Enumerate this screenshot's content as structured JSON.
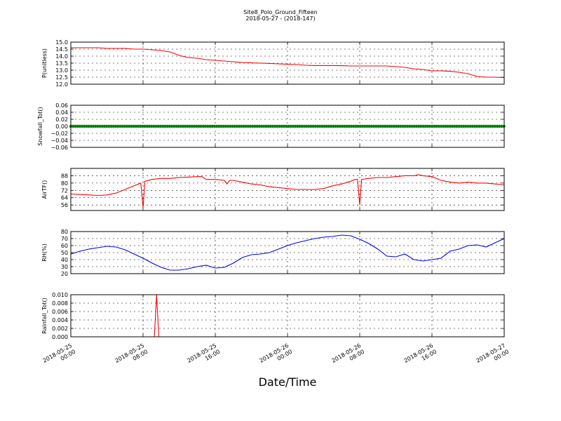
{
  "chart_data": {
    "title": "Site8_Polo_Ground_Fifteen",
    "subtitle": "2018-05-27 - (2018-147)",
    "xlabel": "Date/Time",
    "x_ticks": [
      [
        "2018-05-25",
        "00:00"
      ],
      [
        "2018-05-25",
        "08:00"
      ],
      [
        "2018-05-25",
        "16:00"
      ],
      [
        "2018-05-26",
        "00:00"
      ],
      [
        "2018-05-26",
        "08:00"
      ],
      [
        "2018-05-26",
        "16:00"
      ],
      [
        "2018-05-27",
        "00:00"
      ]
    ],
    "x_range_hours": [
      0,
      48
    ],
    "grid": true,
    "panels": [
      {
        "type": "line",
        "ylabel": "P(unitless)",
        "color": "#ff0000",
        "ylim": [
          12.0,
          15.0
        ],
        "yticks": [
          12.0,
          12.5,
          13.0,
          13.5,
          14.0,
          14.5,
          15.0
        ],
        "ytick_labels": [
          "12.0",
          "12.5",
          "13.0",
          "13.5",
          "14.0",
          "14.5",
          "15.0"
        ],
        "x": [
          0,
          1,
          2,
          3,
          4,
          5,
          6,
          7,
          8,
          9,
          10,
          11,
          12,
          13,
          14,
          15,
          16,
          17,
          18,
          19,
          20,
          21,
          22,
          23,
          24,
          25,
          26,
          27,
          28,
          29,
          30,
          31,
          32,
          33,
          34,
          35,
          36,
          37,
          38,
          39,
          40,
          41,
          42,
          43,
          44,
          45,
          46,
          47,
          48
        ],
        "y": [
          14.6,
          14.6,
          14.6,
          14.6,
          14.55,
          14.55,
          14.55,
          14.5,
          14.5,
          14.45,
          14.4,
          14.3,
          14.05,
          13.9,
          13.85,
          13.75,
          13.7,
          13.65,
          13.6,
          13.55,
          13.52,
          13.5,
          13.48,
          13.45,
          13.42,
          13.4,
          13.35,
          13.33,
          13.33,
          13.33,
          13.32,
          13.3,
          13.3,
          13.3,
          13.3,
          13.3,
          13.25,
          13.2,
          13.1,
          13.05,
          12.95,
          12.95,
          12.92,
          12.85,
          12.75,
          12.55,
          12.5,
          12.5,
          12.47
        ]
      },
      {
        "type": "scatter",
        "ylabel": "Snowfall_Tot()",
        "color": "#008000",
        "ylim": [
          -0.06,
          0.06
        ],
        "yticks": [
          -0.06,
          -0.04,
          -0.02,
          0.0,
          0.02,
          0.04,
          0.06
        ],
        "ytick_labels": [
          "−0.06",
          "−0.04",
          "−0.02",
          "0.00",
          "0.02",
          "0.04",
          "0.06"
        ],
        "constant_value": 0.0
      },
      {
        "type": "line",
        "ylabel": "AirTF()",
        "color": "#ff0000",
        "ylim": [
          50,
          96
        ],
        "yticks": [
          56,
          64,
          72,
          80,
          88
        ],
        "ytick_labels": [
          "56",
          "64",
          "72",
          "80",
          "88"
        ],
        "x": [
          0,
          1,
          2,
          3,
          4,
          5,
          6,
          7,
          7.5,
          7.75,
          8,
          8.2,
          9,
          10,
          11,
          12,
          13,
          14,
          14.5,
          15,
          16,
          17,
          17.3,
          17.6,
          18,
          19,
          20,
          21,
          22,
          23,
          24,
          25,
          26,
          27,
          28,
          29,
          30,
          31,
          31.5,
          31.75,
          32,
          32.2,
          33,
          34,
          35,
          36,
          37,
          38,
          38.5,
          39,
          40,
          41,
          42,
          43,
          44,
          45,
          46,
          47,
          48
        ],
        "y": [
          68,
          67.5,
          67,
          66.5,
          67,
          69,
          73,
          77,
          79,
          80,
          53,
          82,
          84,
          85,
          85,
          86,
          86.5,
          87,
          87,
          84,
          84,
          83,
          79,
          83,
          83,
          81,
          79,
          78,
          76,
          75,
          74,
          73,
          73,
          73,
          74,
          77,
          79,
          82,
          84,
          84,
          56,
          84,
          85,
          86,
          86,
          87,
          88,
          88,
          89,
          88,
          87,
          83,
          81,
          80,
          81,
          80,
          80,
          79,
          78
        ]
      },
      {
        "type": "line",
        "ylabel": "RH(%)",
        "color": "#0000ff",
        "ylim": [
          20,
          80
        ],
        "yticks": [
          20,
          30,
          40,
          50,
          60,
          70,
          80
        ],
        "ytick_labels": [
          "20",
          "30",
          "40",
          "50",
          "60",
          "70",
          "80"
        ],
        "x": [
          0,
          1,
          2,
          3,
          4,
          5,
          6,
          7,
          8,
          9,
          10,
          11,
          12,
          13,
          14,
          15,
          16,
          17,
          18,
          19,
          20,
          21,
          22,
          23,
          24,
          25,
          26,
          27,
          28,
          29,
          30,
          31,
          32,
          33,
          34,
          35,
          36,
          37,
          38,
          39,
          40,
          41,
          42,
          43,
          44,
          45,
          46,
          47,
          48
        ],
        "y": [
          48,
          52,
          55,
          57,
          59,
          58,
          54,
          48,
          42,
          35,
          29,
          25,
          25,
          27,
          30,
          32,
          28,
          29,
          35,
          43,
          47,
          48,
          50,
          55,
          60,
          64,
          67,
          70,
          72,
          73,
          75,
          74,
          69,
          63,
          55,
          45,
          44,
          48,
          40,
          38,
          40,
          42,
          52,
          55,
          60,
          61,
          58,
          64,
          70
        ]
      },
      {
        "type": "line",
        "ylabel": "Rainfall_Tot()",
        "color": "#ff0000",
        "ylim": [
          0.0,
          0.01
        ],
        "yticks": [
          0.0,
          0.002,
          0.004,
          0.006,
          0.008,
          0.01
        ],
        "ytick_labels": [
          "0.000",
          "0.002",
          "0.004",
          "0.006",
          "0.008",
          "0.010"
        ],
        "x": [
          0,
          9.25,
          9.5,
          9.75,
          48
        ],
        "y": [
          0,
          0,
          0.01,
          0,
          0
        ]
      }
    ]
  }
}
